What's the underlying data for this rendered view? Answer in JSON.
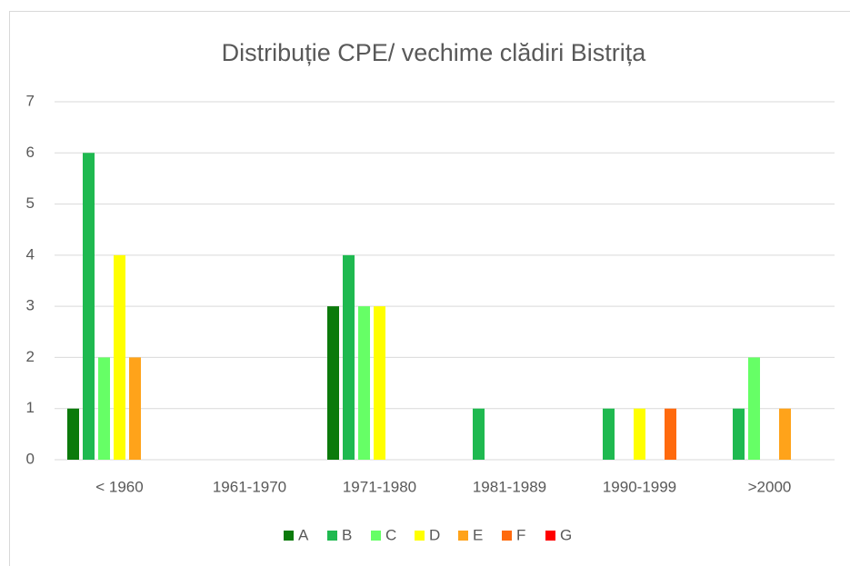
{
  "chart_data": {
    "type": "bar",
    "title": "Distribuție CPE/ vechime clădiri Bistrița",
    "categories": [
      "< 1960",
      "1961-1970",
      "1971-1980",
      "1981-1989",
      "1990-1999",
      ">2000"
    ],
    "series": [
      {
        "name": "A",
        "color": "#0b7a0b",
        "values": [
          1,
          0,
          3,
          0,
          0,
          0
        ]
      },
      {
        "name": "B",
        "color": "#1fb950",
        "values": [
          6,
          0,
          4,
          1,
          1,
          1
        ]
      },
      {
        "name": "C",
        "color": "#66ff66",
        "values": [
          2,
          0,
          3,
          0,
          0,
          2
        ]
      },
      {
        "name": "D",
        "color": "#ffff00",
        "values": [
          4,
          0,
          3,
          0,
          1,
          0
        ]
      },
      {
        "name": "E",
        "color": "#ffa31a",
        "values": [
          2,
          0,
          0,
          0,
          0,
          1
        ]
      },
      {
        "name": "F",
        "color": "#ff6a0d",
        "values": [
          0,
          0,
          0,
          0,
          1,
          0
        ]
      },
      {
        "name": "G",
        "color": "#ff0000",
        "values": [
          0,
          0,
          0,
          0,
          0,
          0
        ]
      }
    ],
    "ylim": [
      0,
      7
    ],
    "yticks": [
      0,
      1,
      2,
      3,
      4,
      5,
      6,
      7
    ],
    "grid": true,
    "legend": "bottom"
  }
}
